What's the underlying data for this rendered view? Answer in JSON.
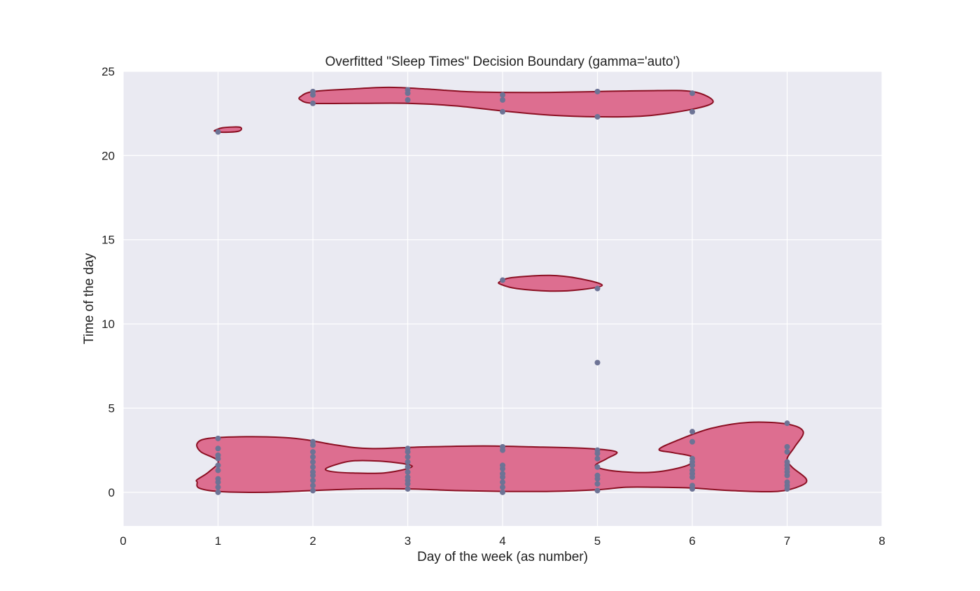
{
  "chart_data": {
    "type": "scatter",
    "title": "Overfitted \"Sleep Times\" Decision Boundary (gamma='auto')",
    "xlabel": "Day of the week (as number)",
    "ylabel": "Time of the day",
    "xlim": [
      0,
      8
    ],
    "ylim": [
      -2,
      25
    ],
    "xticks": [
      0,
      1,
      2,
      3,
      4,
      5,
      6,
      7,
      8
    ],
    "yticks": [
      0,
      5,
      10,
      15,
      20,
      25
    ],
    "grid": true,
    "background_color": "#eaeaf2",
    "grid_color": "#ffffff",
    "point_color": "#6d7395",
    "region_fill_color": "#dd6e90",
    "region_stroke_color": "#8b0f22",
    "points": [
      [
        1,
        0.0
      ],
      [
        1,
        0.3
      ],
      [
        1,
        0.6
      ],
      [
        1,
        0.8
      ],
      [
        1,
        1.3
      ],
      [
        1,
        1.6
      ],
      [
        1,
        2.0
      ],
      [
        1,
        2.2
      ],
      [
        1,
        2.6
      ],
      [
        1,
        3.2
      ],
      [
        1,
        21.4
      ],
      [
        2,
        0.1
      ],
      [
        2,
        0.4
      ],
      [
        2,
        0.7
      ],
      [
        2,
        1.0
      ],
      [
        2,
        1.2
      ],
      [
        2,
        1.5
      ],
      [
        2,
        1.8
      ],
      [
        2,
        2.1
      ],
      [
        2,
        2.4
      ],
      [
        2,
        2.8
      ],
      [
        2,
        3.0
      ],
      [
        2,
        23.1
      ],
      [
        2,
        23.6
      ],
      [
        2,
        23.8
      ],
      [
        3,
        0.2
      ],
      [
        3,
        0.5
      ],
      [
        3,
        0.7
      ],
      [
        3,
        0.9
      ],
      [
        3,
        1.2
      ],
      [
        3,
        1.5
      ],
      [
        3,
        1.8
      ],
      [
        3,
        2.1
      ],
      [
        3,
        2.4
      ],
      [
        3,
        2.6
      ],
      [
        3,
        23.3
      ],
      [
        3,
        23.7
      ],
      [
        3,
        23.9
      ],
      [
        4,
        0.0
      ],
      [
        4,
        0.3
      ],
      [
        4,
        0.6
      ],
      [
        4,
        0.9
      ],
      [
        4,
        1.1
      ],
      [
        4,
        1.4
      ],
      [
        4,
        1.6
      ],
      [
        4,
        2.5
      ],
      [
        4,
        2.7
      ],
      [
        4,
        12.6
      ],
      [
        4,
        22.6
      ],
      [
        4,
        23.3
      ],
      [
        4,
        23.6
      ],
      [
        5,
        0.1
      ],
      [
        5,
        0.5
      ],
      [
        5,
        0.8
      ],
      [
        5,
        1.0
      ],
      [
        5,
        1.5
      ],
      [
        5,
        2.0
      ],
      [
        5,
        2.3
      ],
      [
        5,
        2.5
      ],
      [
        5,
        7.7
      ],
      [
        5,
        12.1
      ],
      [
        5,
        22.3
      ],
      [
        5,
        23.8
      ],
      [
        6,
        0.2
      ],
      [
        6,
        0.4
      ],
      [
        6,
        0.9
      ],
      [
        6,
        1.1
      ],
      [
        6,
        1.3
      ],
      [
        6,
        1.6
      ],
      [
        6,
        1.8
      ],
      [
        6,
        2.0
      ],
      [
        6,
        3.0
      ],
      [
        6,
        3.6
      ],
      [
        6,
        22.6
      ],
      [
        6,
        23.7
      ],
      [
        7,
        0.2
      ],
      [
        7,
        0.4
      ],
      [
        7,
        0.6
      ],
      [
        7,
        1.0
      ],
      [
        7,
        1.2
      ],
      [
        7,
        1.4
      ],
      [
        7,
        1.6
      ],
      [
        7,
        1.8
      ],
      [
        7,
        2.4
      ],
      [
        7,
        2.7
      ],
      [
        7,
        4.1
      ]
    ],
    "decision_regions": [
      {
        "name": "bottom-region",
        "outer": [
          [
            0.78,
            0.6
          ],
          [
            0.8,
            0.25
          ],
          [
            1.0,
            0.05
          ],
          [
            1.5,
            0.0
          ],
          [
            2.0,
            0.1
          ],
          [
            2.5,
            0.2
          ],
          [
            3.0,
            0.2
          ],
          [
            3.5,
            0.1
          ],
          [
            4.0,
            0.05
          ],
          [
            4.5,
            0.05
          ],
          [
            5.0,
            0.15
          ],
          [
            5.3,
            0.3
          ],
          [
            5.6,
            0.3
          ],
          [
            6.0,
            0.25
          ],
          [
            6.4,
            0.1
          ],
          [
            6.9,
            0.05
          ],
          [
            7.15,
            0.4
          ],
          [
            7.2,
            0.8
          ],
          [
            7.05,
            1.5
          ],
          [
            7.0,
            2.0
          ],
          [
            7.08,
            2.7
          ],
          [
            7.17,
            3.6
          ],
          [
            7.0,
            4.05
          ],
          [
            6.6,
            4.15
          ],
          [
            6.2,
            3.8
          ],
          [
            5.85,
            3.1
          ],
          [
            5.65,
            2.55
          ],
          [
            5.8,
            2.35
          ],
          [
            6.0,
            2.1
          ],
          [
            5.95,
            1.6
          ],
          [
            5.6,
            1.2
          ],
          [
            5.2,
            1.25
          ],
          [
            4.98,
            1.55
          ],
          [
            5.1,
            2.0
          ],
          [
            5.2,
            2.4
          ],
          [
            4.9,
            2.6
          ],
          [
            4.3,
            2.7
          ],
          [
            3.8,
            2.75
          ],
          [
            3.2,
            2.7
          ],
          [
            2.6,
            2.6
          ],
          [
            2.25,
            2.8
          ],
          [
            1.95,
            3.1
          ],
          [
            1.7,
            3.25
          ],
          [
            1.3,
            3.3
          ],
          [
            0.9,
            3.2
          ],
          [
            0.78,
            2.9
          ],
          [
            0.82,
            2.4
          ],
          [
            1.0,
            1.85
          ],
          [
            0.9,
            1.2
          ],
          [
            0.78,
            0.75
          ]
        ],
        "holes": [
          [
            [
              2.15,
              1.45
            ],
            [
              2.4,
              1.85
            ],
            [
              2.7,
              1.85
            ],
            [
              3.0,
              1.65
            ],
            [
              3.02,
              1.45
            ],
            [
              2.75,
              1.15
            ],
            [
              2.4,
              1.15
            ],
            [
              2.18,
              1.25
            ]
          ]
        ]
      },
      {
        "name": "top-region",
        "outer": [
          [
            1.87,
            23.5
          ],
          [
            2.0,
            23.8
          ],
          [
            2.4,
            23.95
          ],
          [
            2.8,
            24.05
          ],
          [
            3.2,
            23.95
          ],
          [
            3.6,
            23.8
          ],
          [
            4.0,
            23.75
          ],
          [
            4.5,
            23.75
          ],
          [
            5.0,
            23.8
          ],
          [
            5.5,
            23.85
          ],
          [
            6.0,
            23.8
          ],
          [
            6.22,
            23.2
          ],
          [
            6.0,
            22.75
          ],
          [
            5.5,
            22.35
          ],
          [
            5.0,
            22.3
          ],
          [
            4.5,
            22.4
          ],
          [
            4.0,
            22.65
          ],
          [
            3.5,
            22.95
          ],
          [
            3.0,
            23.1
          ],
          [
            2.5,
            23.1
          ],
          [
            2.0,
            23.1
          ],
          [
            1.87,
            23.3
          ]
        ],
        "holes": []
      },
      {
        "name": "middle-region",
        "outer": [
          [
            3.97,
            12.5
          ],
          [
            4.1,
            12.75
          ],
          [
            4.5,
            12.88
          ],
          [
            4.8,
            12.7
          ],
          [
            5.05,
            12.3
          ],
          [
            4.8,
            12.02
          ],
          [
            4.5,
            11.95
          ],
          [
            4.15,
            12.1
          ],
          [
            3.98,
            12.35
          ]
        ],
        "holes": []
      },
      {
        "name": "small-region",
        "outer": [
          [
            0.97,
            21.5
          ],
          [
            1.05,
            21.65
          ],
          [
            1.23,
            21.68
          ],
          [
            1.22,
            21.45
          ],
          [
            1.05,
            21.38
          ],
          [
            0.97,
            21.45
          ]
        ],
        "holes": []
      }
    ]
  }
}
